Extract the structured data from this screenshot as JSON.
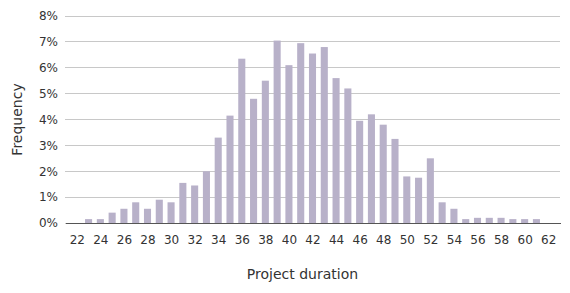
{
  "chart_data": {
    "type": "bar",
    "x_label": "Project duration",
    "y_label": "Frequency",
    "x": [
      23,
      24,
      25,
      26,
      27,
      28,
      29,
      30,
      31,
      32,
      33,
      34,
      35,
      36,
      37,
      38,
      39,
      40,
      41,
      42,
      43,
      44,
      45,
      46,
      47,
      48,
      49,
      50,
      51,
      52,
      53,
      54,
      55,
      56,
      57,
      58,
      59,
      60,
      61
    ],
    "values": [
      0.15,
      0.15,
      0.4,
      0.55,
      0.8,
      0.55,
      0.9,
      0.8,
      1.55,
      1.45,
      2.0,
      3.3,
      4.15,
      6.35,
      4.8,
      5.5,
      7.05,
      6.1,
      6.95,
      6.55,
      6.8,
      5.6,
      5.2,
      3.95,
      4.2,
      3.8,
      3.25,
      1.8,
      1.75,
      2.5,
      0.8,
      0.55,
      0.15,
      0.2,
      0.2,
      0.2,
      0.15,
      0.15,
      0.15
    ],
    "color": "#b8b1c9",
    "xlim": [
      21,
      63
    ],
    "xticks": [
      22,
      24,
      26,
      28,
      30,
      32,
      34,
      36,
      38,
      40,
      42,
      44,
      46,
      48,
      50,
      52,
      54,
      56,
      58,
      60,
      62
    ],
    "ylim": [
      0,
      8
    ],
    "yticks": [
      {
        "value": 0,
        "label": "0%"
      },
      {
        "value": 1,
        "label": "1%"
      },
      {
        "value": 2,
        "label": "2%"
      },
      {
        "value": 3,
        "label": "3%"
      },
      {
        "value": 4,
        "label": "4%"
      },
      {
        "value": 5,
        "label": "5%"
      },
      {
        "value": 6,
        "label": "6%"
      },
      {
        "value": 7,
        "label": "7%"
      },
      {
        "value": 8,
        "label": "8%"
      }
    ],
    "grid": true
  }
}
